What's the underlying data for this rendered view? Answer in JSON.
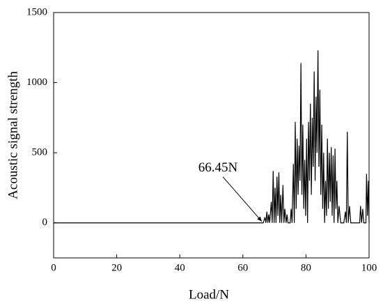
{
  "chart_data": {
    "type": "line",
    "xlabel": "Load/N",
    "ylabel": "Acoustic signal strength",
    "xlim": [
      0,
      100
    ],
    "xticks": [
      0,
      20,
      40,
      60,
      80,
      100
    ],
    "ylim": [
      -250,
      1500
    ],
    "yticks": [
      0,
      500,
      1000,
      1500
    ],
    "annotation": {
      "text": "66.45N",
      "x": 66.45,
      "y": 0
    },
    "x": [
      0,
      66.45,
      67,
      67.3,
      67.6,
      67.9,
      68.2,
      68.5,
      69,
      69.3,
      69.6,
      69.9,
      70.2,
      70.5,
      70.8,
      71.1,
      71.4,
      71.7,
      72,
      72.3,
      72.7,
      73,
      73.3,
      73.7,
      74,
      74.3,
      75,
      75.3,
      75.6,
      76,
      76.3,
      76.6,
      76.9,
      77.2,
      77.5,
      77.8,
      78.1,
      78.4,
      78.7,
      79,
      79.3,
      79.6,
      79.9,
      80.2,
      80.5,
      80.8,
      81.1,
      81.4,
      81.7,
      82,
      82.3,
      82.6,
      82.9,
      83.2,
      83.5,
      83.8,
      84.1,
      84.4,
      84.7,
      85,
      85.3,
      85.6,
      85.9,
      86.2,
      86.5,
      86.8,
      87.1,
      87.4,
      87.7,
      88,
      88.3,
      88.6,
      88.9,
      89.2,
      89.5,
      89.8,
      90.1,
      90.5,
      91,
      92,
      92.5,
      92.8,
      93.1,
      93.4,
      93.8,
      94.2,
      97,
      97.3,
      97.6,
      98,
      98.3,
      99,
      99.2,
      99.5,
      99.8,
      100
    ],
    "series": [
      {
        "color": "#000000",
        "values": [
          0,
          0,
          40,
          0,
          80,
          0,
          60,
          0,
          150,
          0,
          370,
          0,
          250,
          0,
          330,
          50,
          360,
          0,
          200,
          0,
          270,
          0,
          100,
          0,
          60,
          0,
          0,
          100,
          0,
          420,
          0,
          720,
          100,
          600,
          200,
          550,
          300,
          1140,
          200,
          700,
          100,
          450,
          50,
          600,
          0,
          720,
          300,
          850,
          200,
          750,
          400,
          1080,
          300,
          900,
          500,
          1230,
          400,
          950,
          200,
          700,
          100,
          500,
          0,
          300,
          50,
          600,
          100,
          500,
          150,
          540,
          50,
          480,
          0,
          530,
          100,
          300,
          0,
          120,
          0,
          0,
          80,
          0,
          650,
          0,
          120,
          0,
          0,
          120,
          0,
          100,
          0,
          0,
          350,
          50,
          300,
          0
        ]
      }
    ]
  }
}
